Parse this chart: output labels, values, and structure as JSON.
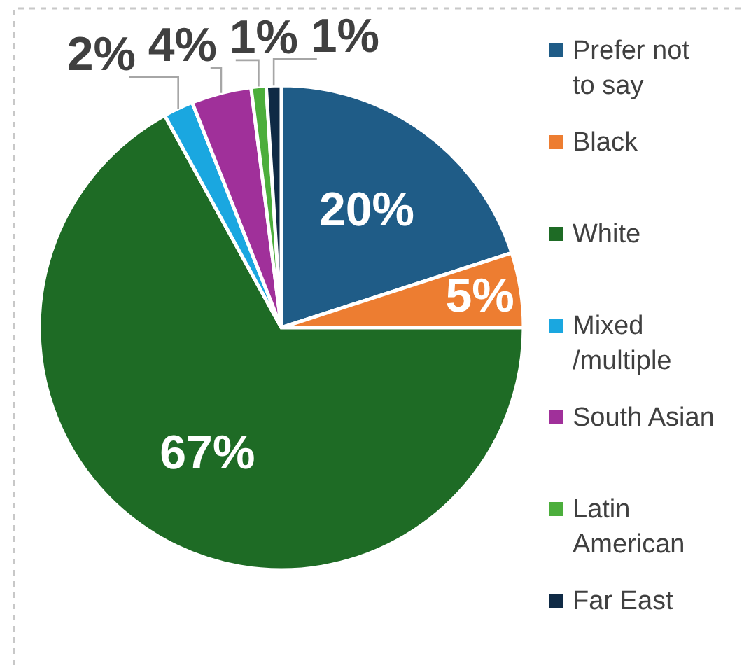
{
  "chart_data": {
    "type": "pie",
    "categories": [
      "Prefer not to say",
      "Black",
      "White",
      "Mixed /multiple",
      "South Asian",
      "Latin American",
      "Far East"
    ],
    "values": [
      20,
      5,
      67,
      2,
      4,
      1,
      1
    ],
    "colors": [
      "#1f5c87",
      "#ed7d31",
      "#1e6b25",
      "#1aa7e0",
      "#a0309a",
      "#4cae3c",
      "#0f2a45"
    ],
    "value_labels": [
      "20%",
      "5%",
      "67%",
      "2%",
      "4%",
      "1%",
      "1%"
    ],
    "legend": "right"
  }
}
